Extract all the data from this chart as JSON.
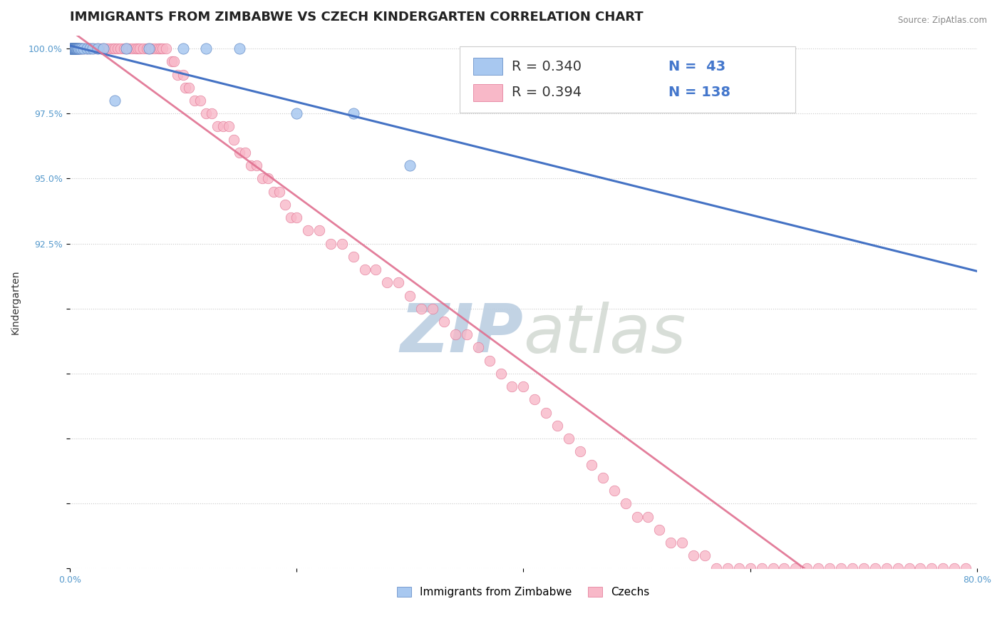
{
  "title": "IMMIGRANTS FROM ZIMBABWE VS CZECH KINDERGARTEN CORRELATION CHART",
  "source_text": "Source: ZipAtlas.com",
  "ylabel": "Kindergarten",
  "xlim": [
    0.0,
    80.0
  ],
  "ylim": [
    80.0,
    100.5
  ],
  "ytick_positions": [
    80.0,
    82.5,
    85.0,
    87.5,
    90.0,
    92.5,
    95.0,
    97.5,
    100.0
  ],
  "ytick_labels": [
    "",
    "",
    "",
    "",
    "",
    "92.5%",
    "95.0%",
    "97.5%",
    "100.0%"
  ],
  "legend_entries": [
    "Immigrants from Zimbabwe",
    "Czechs"
  ],
  "series1_color": "#A8C8F0",
  "series2_color": "#F8B8C8",
  "series1_edge_color": "#5580C0",
  "series2_edge_color": "#E07090",
  "series1_line_color": "#4472C4",
  "series2_line_color": "#D0607880",
  "series1_R": 0.34,
  "series1_N": 43,
  "series2_R": 0.394,
  "series2_N": 138,
  "watermark_zip": "ZIP",
  "watermark_atlas": "atlas",
  "watermark_color": "#C8D8E8",
  "title_fontsize": 13,
  "axis_label_fontsize": 10,
  "tick_fontsize": 9,
  "legend_fontsize": 11,
  "series1_x": [
    0.05,
    0.08,
    0.1,
    0.12,
    0.15,
    0.18,
    0.2,
    0.22,
    0.25,
    0.28,
    0.3,
    0.32,
    0.35,
    0.38,
    0.4,
    0.42,
    0.45,
    0.48,
    0.5,
    0.55,
    0.58,
    0.6,
    0.65,
    0.7,
    0.75,
    0.8,
    0.9,
    1.0,
    1.2,
    1.5,
    1.8,
    2.0,
    2.5,
    3.0,
    4.0,
    5.0,
    7.0,
    10.0,
    12.0,
    15.0,
    20.0,
    25.0,
    30.0
  ],
  "series1_y": [
    100.0,
    100.0,
    100.0,
    100.0,
    100.0,
    100.0,
    100.0,
    100.0,
    100.0,
    100.0,
    100.0,
    100.0,
    100.0,
    100.0,
    100.0,
    100.0,
    100.0,
    100.0,
    100.0,
    100.0,
    100.0,
    100.0,
    100.0,
    100.0,
    100.0,
    100.0,
    100.0,
    100.0,
    100.0,
    100.0,
    100.0,
    100.0,
    100.0,
    100.0,
    98.0,
    100.0,
    100.0,
    100.0,
    100.0,
    100.0,
    97.5,
    97.5,
    95.5
  ],
  "series2_x": [
    0.2,
    0.3,
    0.35,
    0.4,
    0.45,
    0.5,
    0.55,
    0.6,
    0.65,
    0.7,
    0.75,
    0.8,
    0.85,
    0.9,
    0.95,
    1.0,
    1.1,
    1.2,
    1.3,
    1.4,
    1.5,
    1.6,
    1.8,
    2.0,
    2.2,
    2.5,
    2.8,
    3.0,
    3.2,
    3.5,
    3.8,
    4.0,
    4.2,
    4.5,
    4.8,
    5.0,
    5.2,
    5.5,
    5.8,
    6.0,
    6.2,
    6.5,
    6.8,
    7.0,
    7.2,
    7.5,
    7.8,
    8.0,
    8.2,
    8.5,
    9.0,
    9.2,
    9.5,
    10.0,
    10.2,
    10.5,
    11.0,
    11.5,
    12.0,
    12.5,
    13.0,
    13.5,
    14.0,
    14.5,
    15.0,
    15.5,
    16.0,
    16.5,
    17.0,
    17.5,
    18.0,
    18.5,
    19.0,
    19.5,
    20.0,
    21.0,
    22.0,
    23.0,
    24.0,
    25.0,
    26.0,
    27.0,
    28.0,
    29.0,
    30.0,
    31.0,
    32.0,
    33.0,
    34.0,
    35.0,
    36.0,
    37.0,
    38.0,
    39.0,
    40.0,
    41.0,
    42.0,
    43.0,
    44.0,
    45.0,
    46.0,
    47.0,
    48.0,
    49.0,
    50.0,
    51.0,
    52.0,
    53.0,
    54.0,
    55.0,
    56.0,
    57.0,
    58.0,
    59.0,
    60.0,
    61.0,
    62.0,
    63.0,
    64.0,
    65.0,
    66.0,
    67.0,
    68.0,
    69.0,
    70.0,
    71.0,
    72.0,
    73.0,
    74.0,
    75.0,
    76.0,
    77.0,
    78.0,
    79.0
  ],
  "series2_y": [
    100.0,
    100.0,
    100.0,
    100.0,
    100.0,
    100.0,
    100.0,
    100.0,
    100.0,
    100.0,
    100.0,
    100.0,
    100.0,
    100.0,
    100.0,
    100.0,
    100.0,
    100.0,
    100.0,
    100.0,
    100.0,
    100.0,
    100.0,
    100.0,
    100.0,
    100.0,
    100.0,
    100.0,
    100.0,
    100.0,
    100.0,
    100.0,
    100.0,
    100.0,
    100.0,
    100.0,
    100.0,
    100.0,
    100.0,
    100.0,
    100.0,
    100.0,
    100.0,
    100.0,
    100.0,
    100.0,
    100.0,
    100.0,
    100.0,
    100.0,
    99.5,
    99.5,
    99.0,
    99.0,
    98.5,
    98.5,
    98.0,
    98.0,
    97.5,
    97.5,
    97.0,
    97.0,
    97.0,
    96.5,
    96.0,
    96.0,
    95.5,
    95.5,
    95.0,
    95.0,
    94.5,
    94.5,
    94.0,
    93.5,
    93.5,
    93.0,
    93.0,
    92.5,
    92.5,
    92.0,
    91.5,
    91.5,
    91.0,
    91.0,
    90.5,
    90.0,
    90.0,
    89.5,
    89.0,
    89.0,
    88.5,
    88.0,
    87.5,
    87.0,
    87.0,
    86.5,
    86.0,
    85.5,
    85.0,
    84.5,
    84.0,
    83.5,
    83.0,
    82.5,
    82.0,
    82.0,
    81.5,
    81.0,
    81.0,
    80.5,
    80.5,
    80.0,
    80.0,
    80.0,
    80.0,
    80.0,
    80.0,
    80.0,
    80.0,
    80.0,
    80.0,
    80.0,
    80.0,
    80.0,
    80.0,
    80.0,
    80.0,
    80.0,
    80.0,
    80.0,
    80.0,
    80.0,
    80.0,
    80.0
  ]
}
